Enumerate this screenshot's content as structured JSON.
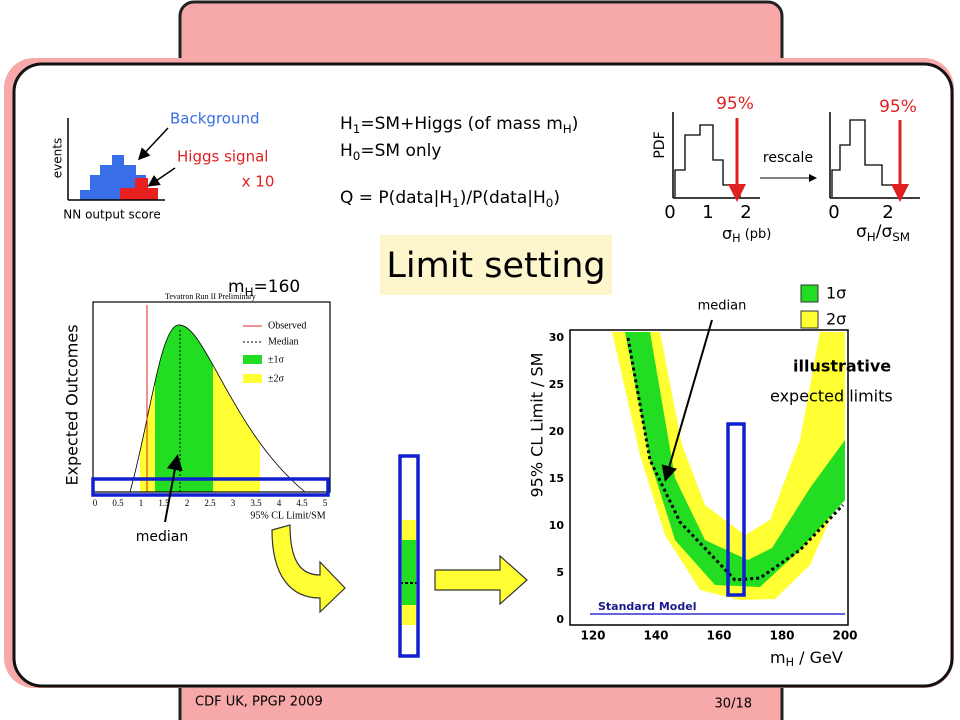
{
  "nn_plot": {
    "background": "Background",
    "signal": "Higgs signal",
    "scale": "x 10",
    "y_label": "events",
    "x_label": "NN output score"
  },
  "hypotheses": {
    "h1": [
      "H",
      "1",
      "=SM+Higgs (of mass m",
      "H",
      ")"
    ],
    "h0": [
      "H",
      "0",
      "=SM only"
    ],
    "q": [
      "Q = P(data|H",
      "1",
      ")/P(data|H",
      "0",
      ")"
    ]
  },
  "pdf_plots": {
    "y_label": "PDF",
    "cl_left": "95%",
    "cl_right": "95%",
    "rescale": "rescale",
    "left_ticks": [
      "0",
      "1",
      "2"
    ],
    "right_ticks": [
      "0",
      "2"
    ],
    "left_x_label": [
      "σ",
      "H",
      " (pb)"
    ],
    "right_x_label": [
      "σ",
      "H",
      "/σ",
      "SM"
    ]
  },
  "title": "Limit setting",
  "outcome_plot": {
    "mass": [
      "m",
      "H",
      "=160"
    ],
    "header": "Tevatron Run II Preliminary",
    "legend": [
      "Observed",
      "Median",
      "±1σ",
      "±2σ"
    ],
    "x_label": "95% CL Limit/SM",
    "x_ticks": [
      "0",
      "0.5",
      "1",
      "1.5",
      "2",
      "2.5",
      "3",
      "3.5",
      "4",
      "4.5",
      "5"
    ],
    "y_label": "Expected Outcomes",
    "median": "median"
  },
  "limit_plot": {
    "median": "median",
    "legend": [
      "1σ",
      "2σ"
    ],
    "note1": "illustrative",
    "note2": "expected limits",
    "y_label": "95% CL Limit / SM",
    "x_label": [
      "m",
      "H",
      " / GeV"
    ],
    "sm_label": "Standard Model",
    "y_ticks": [
      "0",
      "5",
      "10",
      "15",
      "20",
      "25",
      "30"
    ],
    "x_ticks": [
      "120",
      "140",
      "160",
      "180",
      "200"
    ]
  },
  "footer": {
    "left": "CDF UK, PPGP 2009",
    "right": "30/18"
  }
}
